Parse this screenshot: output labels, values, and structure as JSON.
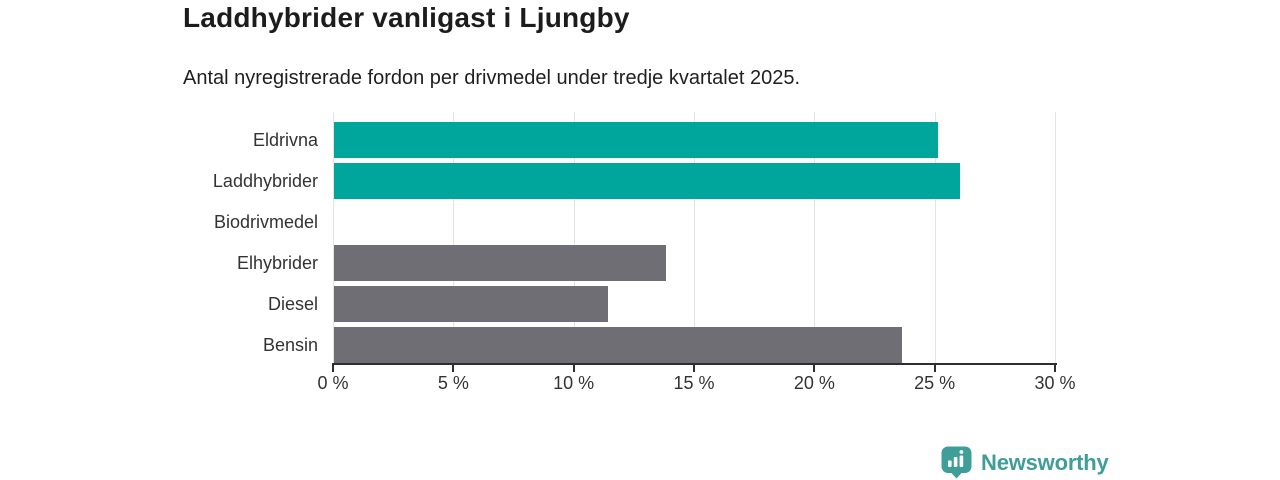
{
  "chart_data": {
    "type": "bar",
    "orientation": "horizontal",
    "title": "Laddhybrider vanligast i Ljungby",
    "subtitle": "Antal nyregistrerade fordon per drivmedel under tredje kvartalet 2025.",
    "categories": [
      "Eldrivna",
      "Laddhybrider",
      "Biodrivmedel",
      "Elhybrider",
      "Diesel",
      "Bensin"
    ],
    "values": [
      25.1,
      26.0,
      0,
      13.8,
      11.4,
      23.6
    ],
    "unit": "%",
    "bar_colors": [
      "#00a69b",
      "#00a69b",
      "#6e6e74",
      "#6e6e74",
      "#6e6e74",
      "#6e6e74"
    ],
    "xlim": [
      0,
      30
    ],
    "x_ticks": [
      0,
      5,
      10,
      15,
      20,
      25,
      30
    ],
    "x_tick_labels": [
      "0 %",
      "5 %",
      "10 %",
      "15 %",
      "20 %",
      "25 %",
      "30 %"
    ],
    "grid": true,
    "legend": "none"
  },
  "colors": {
    "accent_teal": "#00a69b",
    "neutral_gray": "#6e6e74",
    "gridline": "#e3e3e3",
    "axis": "#2e2e2e",
    "text": "#1c1c1c",
    "logo_teal": "#3f9e98"
  },
  "footer": {
    "brand_label": "Newsworthy",
    "icon": "newsworthy-pin-bar-chart-icon"
  }
}
